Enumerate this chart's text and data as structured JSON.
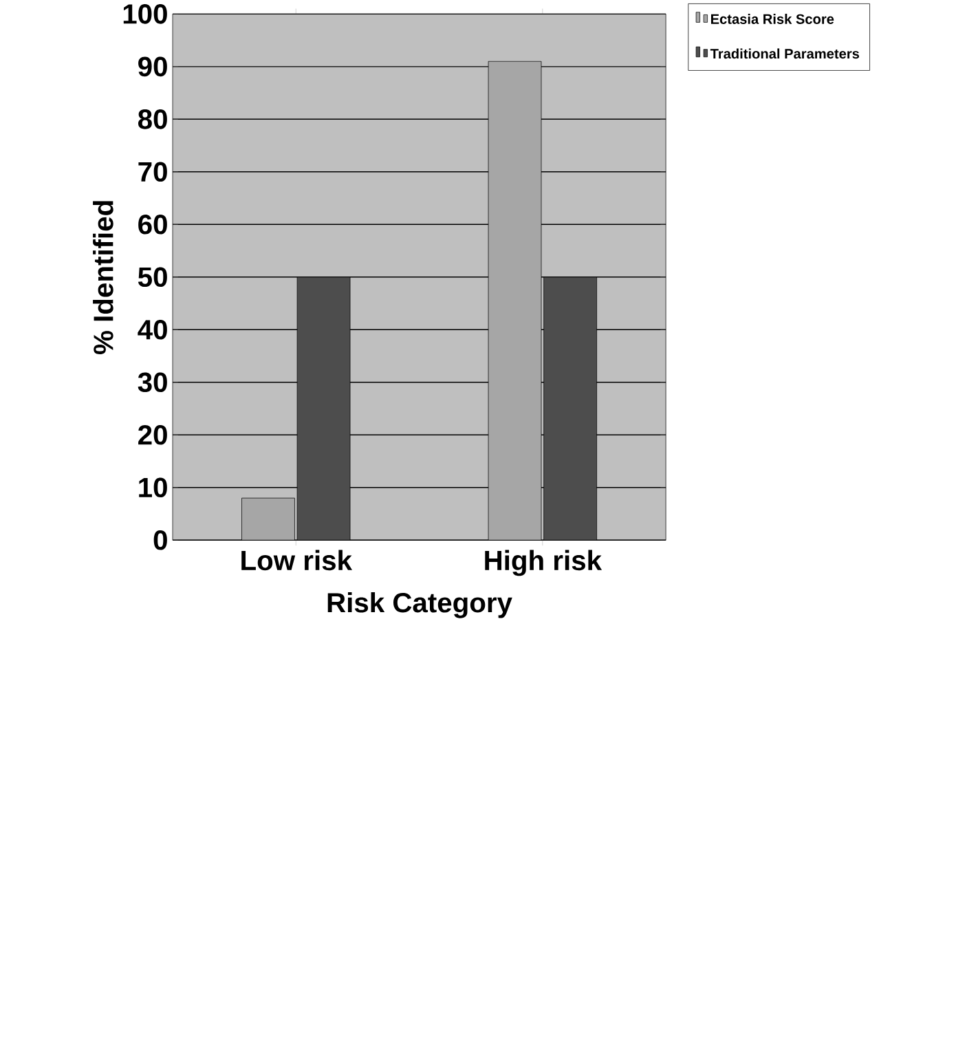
{
  "chart_data": {
    "type": "bar",
    "xlabel": "Risk Category",
    "ylabel": "% Identified",
    "categories": [
      "Low risk",
      "High risk"
    ],
    "series": [
      {
        "name": "Ectasia Risk Score",
        "color": "#a6a6a6",
        "values": [
          8,
          91
        ]
      },
      {
        "name": "Traditional Parameters",
        "color": "#4d4d4d",
        "values": [
          50,
          50
        ]
      }
    ],
    "ylim": [
      0,
      100
    ],
    "yticks": [
      0,
      10,
      20,
      30,
      40,
      50,
      60,
      70,
      80,
      90,
      100
    ],
    "grid": "y",
    "legend": "top right"
  }
}
